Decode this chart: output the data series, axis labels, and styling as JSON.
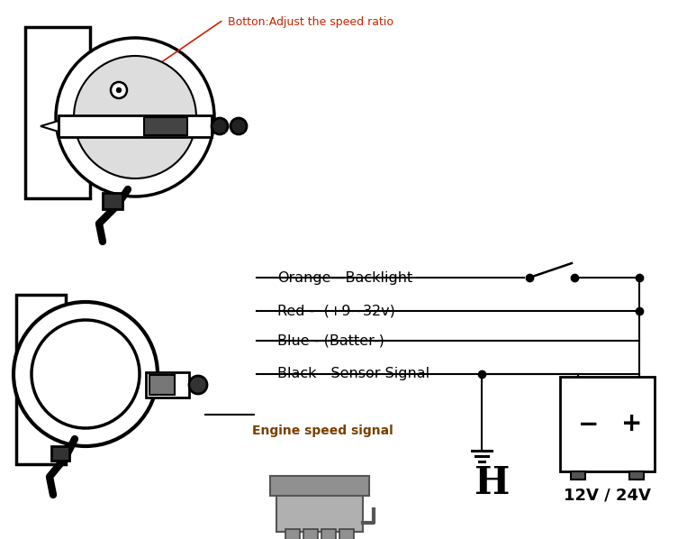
{
  "bg_color": "#ffffff",
  "text_color": "#000000",
  "annotation_color": "#cc2200",
  "annotation_text": "Botton:Adjust the speed ratio",
  "wire_labels": [
    "Orange—Backlight",
    "Red -  (+9~32v)",
    "Blue - (Batter-)",
    "Black - Sensor Signal"
  ],
  "engine_label": "Engine speed signal",
  "h_label": "H",
  "battery_label": "12V / 24V",
  "battery_plus": "+",
  "battery_minus": "−"
}
